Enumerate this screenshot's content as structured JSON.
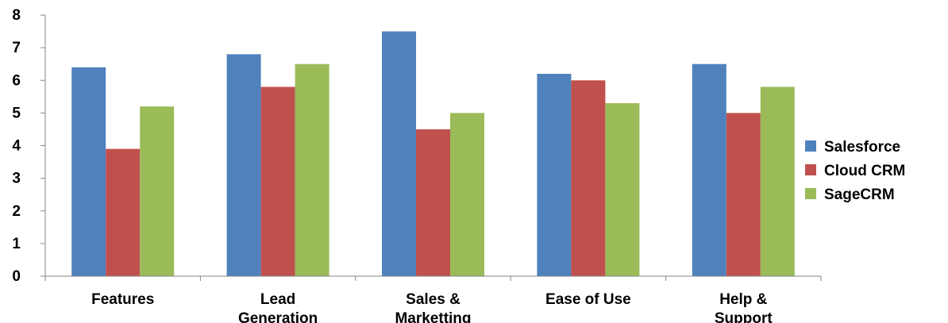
{
  "chart_data": {
    "type": "bar",
    "categories": [
      [
        "Features"
      ],
      [
        "Lead",
        "Generation"
      ],
      [
        "Sales &",
        "Marketting"
      ],
      [
        "Ease of Use"
      ],
      [
        "Help &",
        "Support"
      ]
    ],
    "series": [
      {
        "name": "Salesforce",
        "color": "#4F81BD",
        "values": [
          6.4,
          6.8,
          7.5,
          6.2,
          6.5
        ]
      },
      {
        "name": "Cloud CRM",
        "color": "#C0504D",
        "values": [
          3.9,
          5.8,
          4.5,
          6.0,
          5.0
        ]
      },
      {
        "name": "SageCRM",
        "color": "#9BBB59",
        "values": [
          5.2,
          6.5,
          5.0,
          5.3,
          5.8
        ]
      }
    ],
    "y_ticks": [
      "0",
      "1",
      "2",
      "3",
      "4",
      "5",
      "6",
      "7",
      "8"
    ],
    "ylim": [
      0,
      8
    ],
    "grid": false,
    "legend_position": "right"
  }
}
